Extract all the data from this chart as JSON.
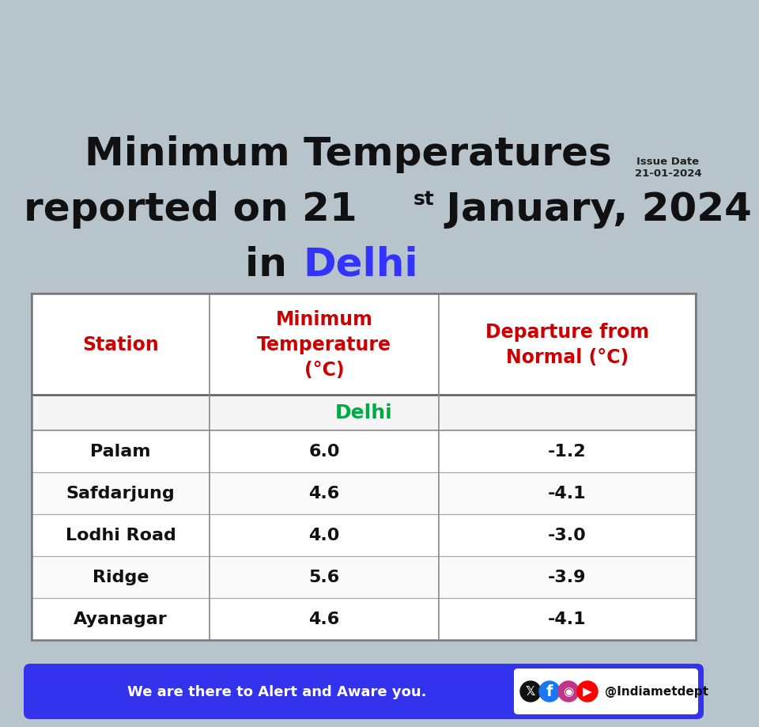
{
  "title_line1": "Minimum Temperatures",
  "title_line2_pre": "reported on 21",
  "title_superscript": "st",
  "title_line2_post": " January, 2024",
  "title_line3_prefix": "in ",
  "title_line3_highlight": "Delhi",
  "issue_date_label": "Issue Date",
  "issue_date": "21-01-2024",
  "col_headers": [
    "Station",
    "Minimum\nTemperature\n(°C)",
    "Departure from\nNormal (°C)"
  ],
  "section_label": "Delhi",
  "stations": [
    "Palam",
    "Safdarjung",
    "Lodhi Road",
    "Ridge",
    "Ayanagar"
  ],
  "min_temps": [
    "6.0",
    "4.6",
    "4.0",
    "5.6",
    "4.6"
  ],
  "departures": [
    "-1.2",
    "-4.1",
    "-3.0",
    "-3.9",
    "-4.1"
  ],
  "header_color": "#cc0000",
  "section_color": "#00aa44",
  "title_color": "#111111",
  "highlight_color": "#3333ff",
  "footer_bg_color": "#3333ee",
  "footer_text": "We are there to Alert and Aware you.",
  "footer_handle": "@Indiametdept",
  "bg_color": "#b8c4cc"
}
